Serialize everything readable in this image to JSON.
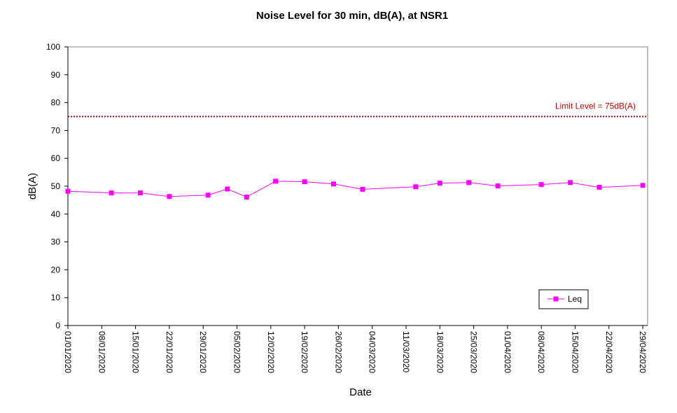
{
  "chart_data": {
    "type": "line",
    "title": "Noise Level for 30 min, dB(A), at NSR1",
    "xlabel": "Date",
    "ylabel": "dB(A)",
    "xlim": [
      "01/01/2020",
      "30/04/2020"
    ],
    "ylim": [
      0,
      100
    ],
    "y_ticks": [
      0,
      10,
      20,
      30,
      40,
      50,
      60,
      70,
      80,
      90,
      100
    ],
    "x_tick_labels": [
      "01/01/2020",
      "08/01/2020",
      "15/01/2020",
      "22/01/2020",
      "29/01/2020",
      "05/02/2020",
      "12/02/2020",
      "19/02/2020",
      "26/02/2020",
      "04/03/2020",
      "11/03/2020",
      "18/03/2020",
      "25/03/2020",
      "01/04/2020",
      "08/04/2020",
      "15/04/2020",
      "22/04/2020",
      "29/04/2020"
    ],
    "grid": false,
    "legend_position": "bottom-right",
    "series": [
      {
        "name": "Leq",
        "color": "#ff00ff",
        "marker": "square",
        "points": [
          {
            "x": "01/01/2020",
            "y": 48.2
          },
          {
            "x": "10/01/2020",
            "y": 47.6
          },
          {
            "x": "16/01/2020",
            "y": 47.6
          },
          {
            "x": "22/01/2020",
            "y": 46.3
          },
          {
            "x": "30/01/2020",
            "y": 46.8
          },
          {
            "x": "03/02/2020",
            "y": 49.0
          },
          {
            "x": "07/02/2020",
            "y": 46.1
          },
          {
            "x": "13/02/2020",
            "y": 51.8
          },
          {
            "x": "19/02/2020",
            "y": 51.6
          },
          {
            "x": "25/02/2020",
            "y": 50.8
          },
          {
            "x": "02/03/2020",
            "y": 48.9
          },
          {
            "x": "13/03/2020",
            "y": 49.8
          },
          {
            "x": "18/03/2020",
            "y": 51.1
          },
          {
            "x": "24/03/2020",
            "y": 51.3
          },
          {
            "x": "30/03/2020",
            "y": 50.1
          },
          {
            "x": "08/04/2020",
            "y": 50.6
          },
          {
            "x": "14/04/2020",
            "y": 51.3
          },
          {
            "x": "20/04/2020",
            "y": 49.6
          },
          {
            "x": "29/04/2020",
            "y": 50.3
          }
        ]
      }
    ],
    "reference_lines": [
      {
        "label": "Limit Level  = 75dB(A)",
        "y": 75,
        "color": "#cc0000",
        "style": "dotted"
      }
    ]
  }
}
